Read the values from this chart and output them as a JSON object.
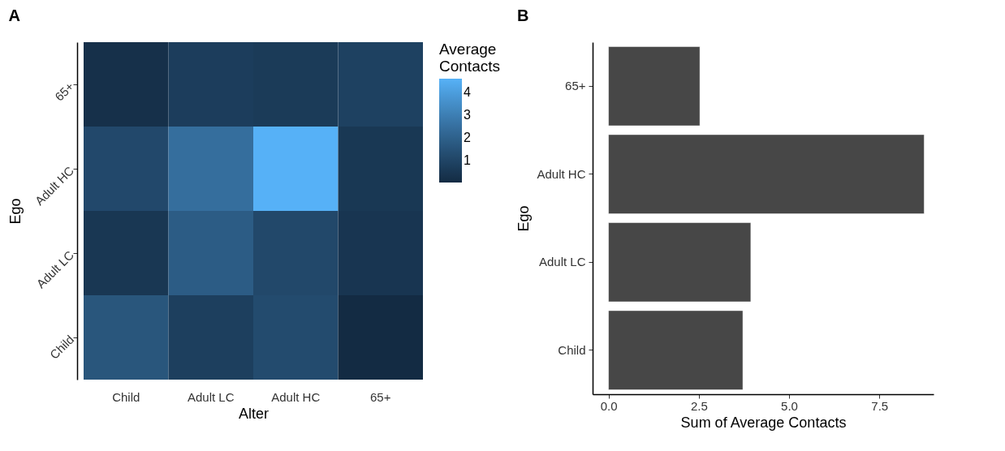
{
  "chart_data": [
    {
      "type": "heatmap",
      "title": "A",
      "xlabel": "Alter",
      "ylabel": "Ego",
      "clabel": "Average Contacts",
      "categories": [
        "Child",
        "Adult LC",
        "Adult HC",
        "65+"
      ],
      "y_categories": [
        "65+",
        "Adult HC",
        "Adult LC",
        "Child"
      ],
      "cells": [
        [
          0.25,
          0.75,
          0.65,
          0.88
        ],
        [
          1.15,
          2.45,
          4.6,
          0.54
        ],
        [
          0.5,
          1.85,
          1.14,
          0.45
        ],
        [
          1.62,
          0.8,
          1.25,
          0.05
        ]
      ],
      "clim": [
        0.05,
        4.6
      ],
      "cticks": [
        1,
        2,
        3,
        4
      ],
      "colors": [
        "#132b43",
        "#56b1f7"
      ],
      "grid": false
    },
    {
      "type": "bar",
      "orientation": "horizontal",
      "title": "B",
      "xlabel": "Sum of Average Contacts",
      "ylabel": "Ego",
      "categories": [
        "65+",
        "Adult HC",
        "Adult LC",
        "Child"
      ],
      "values": [
        2.53,
        8.74,
        3.94,
        3.72
      ],
      "color": "#474747",
      "xlim": [
        -0.44,
        9.0
      ],
      "xticks": [
        {
          "value": 0,
          "label": "0.0"
        },
        2.5,
        {
          "value": 5,
          "label": "5.0"
        },
        7.5
      ],
      "grid": false
    }
  ]
}
